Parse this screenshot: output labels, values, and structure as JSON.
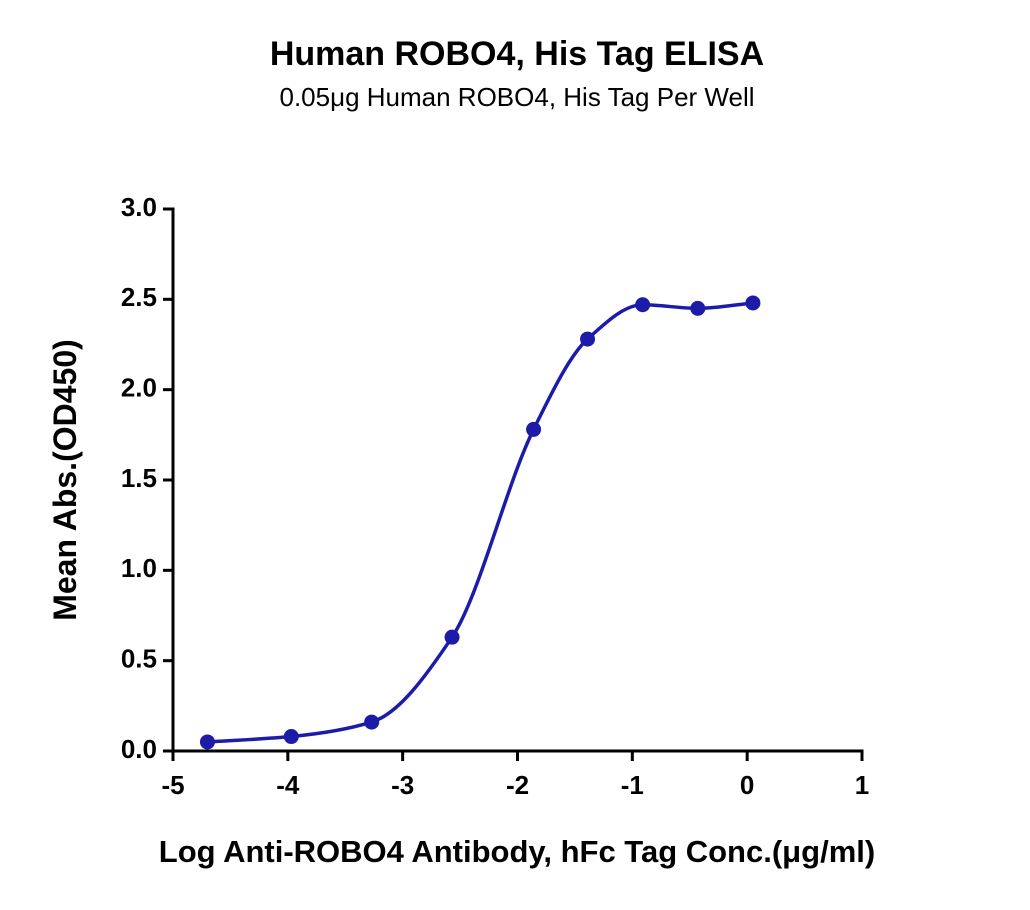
{
  "chart_data": {
    "type": "scatter",
    "title": "Human ROBO4, His Tag ELISA",
    "subtitle": "0.05μg Human ROBO4, His Tag Per Well",
    "x_label": "Log Anti-ROBO4 Antibody, hFc Tag Conc.(μg/ml)",
    "y_label": "Mean Abs.(OD450)",
    "color": "#1c1ca8",
    "x": [
      -4.7,
      -3.97,
      -3.27,
      -2.57,
      -1.86,
      -1.39,
      -0.91,
      -0.43,
      0.05
    ],
    "values": [
      0.05,
      0.08,
      0.16,
      0.63,
      1.78,
      2.28,
      2.47,
      2.45,
      2.48
    ],
    "xlim": [
      -5,
      1
    ],
    "xticks": [
      -5,
      -4,
      -3,
      -2,
      -1,
      0,
      1
    ],
    "ylim": [
      0,
      3
    ],
    "yticks": [
      {
        "value": 0,
        "label": "0.0"
      },
      {
        "value": 0.5,
        "label": "0.5"
      },
      {
        "value": 1,
        "label": "1.0"
      },
      {
        "value": 1.5,
        "label": "1.5"
      },
      {
        "value": 2,
        "label": "2.0"
      },
      {
        "value": 2.5,
        "label": "2.5"
      },
      {
        "value": 3,
        "label": "3.0"
      }
    ]
  }
}
